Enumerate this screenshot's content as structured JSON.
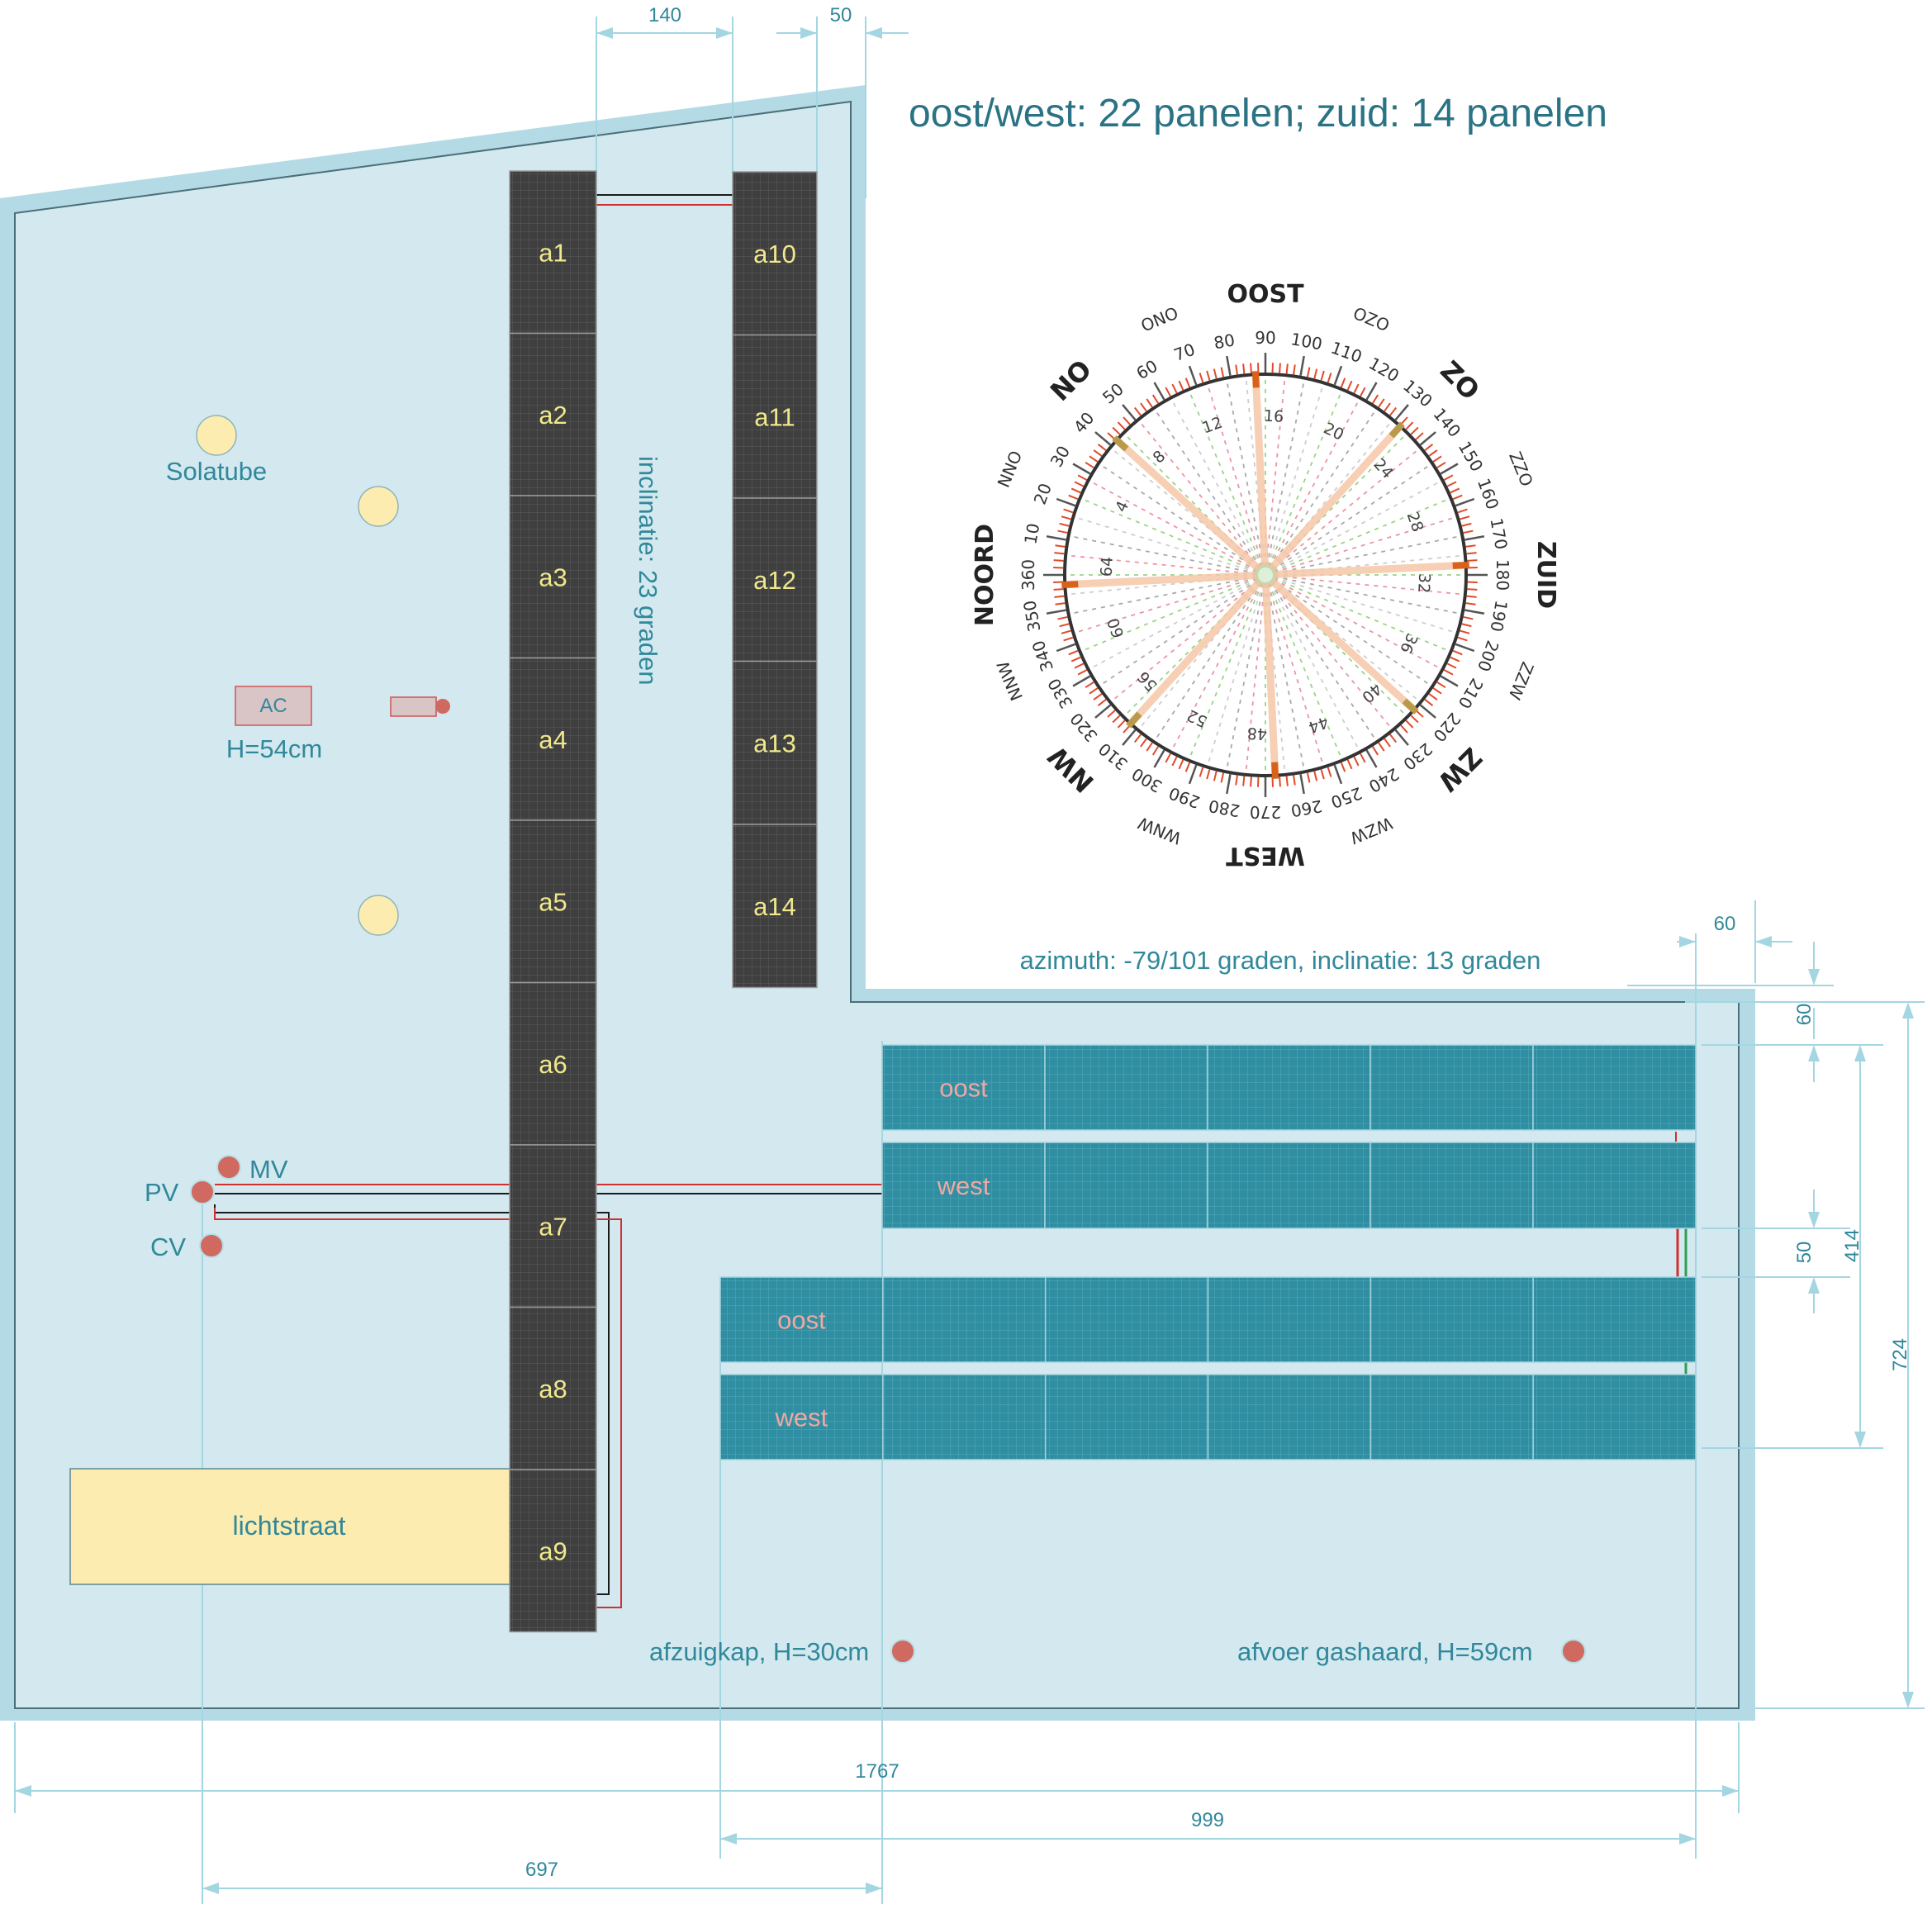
{
  "title": "oost/west: 22 panelen; zuid: 14 panelen",
  "colors": {
    "roof_fill": "#d3e9ef",
    "roof_edge": "#b4dbe5",
    "roof_stroke": "#4a6f78",
    "dim_line": "#a4d6e2",
    "dim_text": "#31889b",
    "panel_dark": "#3f3f3f",
    "panel_grid": "#5a5a5a",
    "panel_teal": "#2f8ea1",
    "panel_teal_grid": "#4fa7b8",
    "panel_label_yellow": "#f0e88c",
    "panel_label_pink": "#f0a8a0",
    "skylight_fill": "#fcecb0",
    "marker_red": "#d06a60",
    "label_blue": "#31889b"
  },
  "south_array": {
    "label": "inclinatie: 23 graden",
    "column1": [
      "a1",
      "a2",
      "a3",
      "a4",
      "a5",
      "a6",
      "a7",
      "a8",
      "a9"
    ],
    "column2": [
      "a10",
      "a11",
      "a12",
      "a13",
      "a14"
    ]
  },
  "east_west_array": {
    "label": "azimuth: -79/101 graden, inclinatie: 13 graden",
    "rows": [
      "oost",
      "west",
      "oost",
      "west"
    ]
  },
  "roof_items": {
    "solatube": "Solatube",
    "ac": "AC",
    "ac_height": "H=54cm",
    "mv": "MV",
    "pv": "PV",
    "cv": "CV",
    "lichtstraat": "lichtstraat",
    "afzuigkap": "afzuigkap, H=30cm",
    "gashaard": "afvoer gashaard, H=59cm"
  },
  "dimensions": {
    "top_140": "140",
    "top_50": "50",
    "right_60_top": "60",
    "right_60_side": "60",
    "right_50": "50",
    "right_414": "414",
    "right_724": "724",
    "bottom_1767": "1767",
    "bottom_999": "999",
    "bottom_697": "697"
  },
  "compass": {
    "cardinals": [
      {
        "label": "OOST",
        "deg": 90
      },
      {
        "label": "ZUID",
        "deg": 180
      },
      {
        "label": "WEST",
        "deg": 270
      },
      {
        "label": "NOORD",
        "deg": 360
      }
    ],
    "intercardinals": [
      {
        "label": "NO",
        "deg": 45
      },
      {
        "label": "ZO",
        "deg": 135
      },
      {
        "label": "ZW",
        "deg": 225
      },
      {
        "label": "NW",
        "deg": 315
      }
    ],
    "minor_dirs": [
      {
        "label": "NNO",
        "deg": 22.5
      },
      {
        "label": "ONO",
        "deg": 67.5
      },
      {
        "label": "OZO",
        "deg": 112.5
      },
      {
        "label": "ZZO",
        "deg": 157.5
      },
      {
        "label": "ZZW",
        "deg": 202.5
      },
      {
        "label": "WZW",
        "deg": 247.5
      },
      {
        "label": "WNW",
        "deg": 292.5
      },
      {
        "label": "NNW",
        "deg": 337.5
      }
    ],
    "degree_labels": [
      "10",
      "20",
      "30",
      "40",
      "50",
      "60",
      "70",
      "80",
      "90",
      "100",
      "110",
      "120",
      "130",
      "140",
      "150",
      "160",
      "170",
      "180",
      "190",
      "200",
      "210",
      "220",
      "230",
      "240",
      "250",
      "260",
      "270",
      "280",
      "290",
      "300",
      "310",
      "320",
      "330",
      "340",
      "350",
      "360"
    ],
    "hour_marks": [
      "4",
      "8",
      "12",
      "16",
      "20",
      "24",
      "28",
      "32",
      "36",
      "40",
      "44",
      "48",
      "52",
      "56",
      "60",
      "64"
    ],
    "highlight_marks": [
      16,
      32,
      48,
      64
    ]
  }
}
